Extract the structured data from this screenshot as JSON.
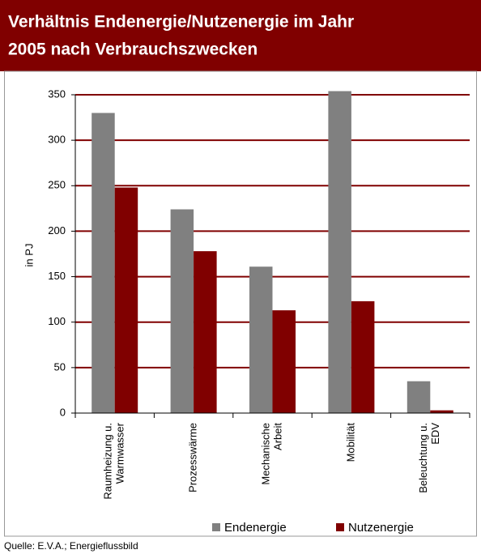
{
  "chart_data": {
    "type": "bar",
    "title": [
      "Verhältnis Endenergie/Nutzenergie im Jahr",
      "2005 nach Verbrauchszwecken"
    ],
    "ylabel": "in PJ",
    "categories": [
      [
        "Raumheizung u.",
        "Warmwasser"
      ],
      [
        "Prozesswärme"
      ],
      [
        "Mechanische",
        "Arbeit"
      ],
      [
        "Mobilität"
      ],
      [
        "Beleuchtung u.",
        "EDV"
      ]
    ],
    "series": [
      {
        "name": "Endenergie",
        "color": "#808080",
        "values": [
          330,
          224,
          161,
          354,
          35
        ]
      },
      {
        "name": "Nutzenergie",
        "color": "#800000",
        "values": [
          248,
          178,
          113,
          123,
          3
        ]
      }
    ],
    "ylim": [
      0,
      350
    ],
    "yticks": [
      0,
      50,
      100,
      150,
      200,
      250,
      300,
      350
    ],
    "grid": true,
    "grid_color": "#800000",
    "legend": "bottom",
    "source": "Quelle: E.V.A.;  Energieflussbild"
  }
}
